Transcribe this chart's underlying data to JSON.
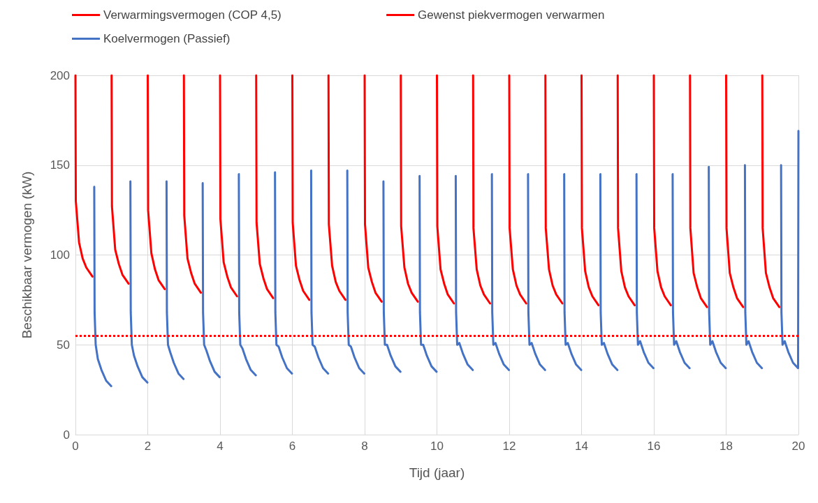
{
  "chart_data": {
    "type": "line",
    "xlabel": "Tijd (jaar)",
    "ylabel": "Beschikbaar vermogen (kW)",
    "xlim": [
      0,
      20
    ],
    "xticks": [
      0,
      2,
      4,
      6,
      8,
      10,
      12,
      14,
      16,
      18,
      20
    ],
    "ylim": [
      0,
      200
    ],
    "yticks": [
      0,
      50,
      100,
      150,
      200
    ],
    "grid": true,
    "legend": "top",
    "marker": "none",
    "series": [
      {
        "name": "Verwarmingsvermogen (COP 4,5)",
        "color": "#ff0000",
        "line_style": "solid",
        "x": [
          0,
          0.01,
          0.1,
          0.2,
          0.3,
          0.47,
          0.5,
          1,
          1.01,
          1.1,
          1.2,
          1.3,
          1.47,
          1.5,
          2,
          2.01,
          2.1,
          2.2,
          2.3,
          2.47,
          2.5,
          3,
          3.01,
          3.1,
          3.2,
          3.3,
          3.47,
          3.5,
          4,
          4.01,
          4.1,
          4.2,
          4.3,
          4.47,
          4.5,
          5,
          5.01,
          5.1,
          5.2,
          5.3,
          5.47,
          5.5,
          6,
          6.01,
          6.1,
          6.2,
          6.3,
          6.47,
          6.5,
          7,
          7.01,
          7.1,
          7.2,
          7.3,
          7.47,
          7.5,
          8,
          8.01,
          8.1,
          8.2,
          8.3,
          8.47,
          8.5,
          9,
          9.01,
          9.1,
          9.2,
          9.3,
          9.47,
          9.5,
          10,
          10.01,
          10.1,
          10.2,
          10.3,
          10.47,
          10.5,
          11,
          11.01,
          11.1,
          11.2,
          11.3,
          11.47,
          11.5,
          12,
          12.01,
          12.1,
          12.2,
          12.3,
          12.47,
          12.5,
          13,
          13.01,
          13.1,
          13.2,
          13.3,
          13.47,
          13.5,
          14,
          14.01,
          14.1,
          14.2,
          14.3,
          14.47,
          14.5,
          15,
          15.01,
          15.1,
          15.2,
          15.3,
          15.47,
          15.5,
          16,
          16.01,
          16.1,
          16.2,
          16.3,
          16.47,
          16.5,
          17,
          17.01,
          17.1,
          17.2,
          17.3,
          17.47,
          17.5,
          18,
          18.01,
          18.1,
          18.2,
          18.3,
          18.47,
          18.5,
          19,
          19.01,
          19.1,
          19.2,
          19.3,
          19.47
        ],
        "values": [
          200,
          130,
          107,
          98,
          93,
          88,
          null,
          200,
          127,
          103,
          95,
          89,
          84,
          null,
          200,
          125,
          101,
          92,
          86,
          81,
          null,
          200,
          122,
          98,
          90,
          84,
          79,
          null,
          200,
          120,
          96,
          88,
          82,
          77,
          null,
          200,
          118,
          95,
          87,
          81,
          76,
          null,
          200,
          118,
          94,
          86,
          80,
          75,
          null,
          200,
          117,
          94,
          85,
          80,
          75,
          null,
          200,
          117,
          93,
          85,
          79,
          74,
          null,
          200,
          116,
          93,
          84,
          79,
          74,
          null,
          200,
          116,
          92,
          84,
          78,
          73,
          null,
          200,
          115,
          92,
          83,
          78,
          73,
          null,
          200,
          115,
          92,
          83,
          78,
          73,
          null,
          200,
          115,
          92,
          83,
          78,
          73,
          null,
          200,
          115,
          91,
          82,
          77,
          72,
          null,
          200,
          115,
          91,
          82,
          77,
          72,
          null,
          200,
          115,
          91,
          82,
          77,
          72,
          null,
          200,
          115,
          90,
          82,
          76,
          71,
          null,
          200,
          115,
          90,
          82,
          76,
          71,
          null,
          200,
          115,
          90,
          82,
          76,
          71
        ]
      },
      {
        "name": "Koelvermogen (Passief)",
        "color": "#4472c4",
        "line_style": "solid",
        "x": [
          0.52,
          0.53,
          0.56,
          0.62,
          0.72,
          0.85,
          0.99,
          1,
          1.52,
          1.53,
          1.56,
          1.62,
          1.72,
          1.85,
          1.99,
          2,
          2.52,
          2.53,
          2.56,
          2.62,
          2.72,
          2.85,
          2.99,
          3,
          3.52,
          3.53,
          3.56,
          3.62,
          3.72,
          3.85,
          3.99,
          4,
          4.52,
          4.53,
          4.56,
          4.62,
          4.72,
          4.85,
          4.99,
          5,
          5.52,
          5.53,
          5.56,
          5.62,
          5.72,
          5.85,
          5.99,
          6,
          6.52,
          6.53,
          6.56,
          6.62,
          6.72,
          6.85,
          6.99,
          7,
          7.52,
          7.53,
          7.56,
          7.62,
          7.72,
          7.85,
          7.99,
          8,
          8.52,
          8.53,
          8.56,
          8.62,
          8.72,
          8.85,
          8.99,
          9,
          9.52,
          9.53,
          9.56,
          9.62,
          9.72,
          9.85,
          9.99,
          10,
          10.52,
          10.53,
          10.56,
          10.62,
          10.72,
          10.85,
          10.99,
          11,
          11.52,
          11.53,
          11.56,
          11.62,
          11.72,
          11.85,
          11.99,
          12,
          12.52,
          12.53,
          12.56,
          12.62,
          12.72,
          12.85,
          12.99,
          13,
          13.52,
          13.53,
          13.56,
          13.62,
          13.72,
          13.85,
          13.99,
          14,
          14.52,
          14.53,
          14.56,
          14.62,
          14.72,
          14.85,
          14.99,
          15,
          15.52,
          15.53,
          15.56,
          15.62,
          15.72,
          15.85,
          15.99,
          16,
          16.52,
          16.53,
          16.56,
          16.62,
          16.72,
          16.85,
          16.99,
          17,
          17.52,
          17.53,
          17.56,
          17.62,
          17.72,
          17.85,
          17.99,
          18,
          18.52,
          18.53,
          18.56,
          18.62,
          18.72,
          18.85,
          18.99,
          19,
          19.52,
          19.53,
          19.56,
          19.62,
          19.72,
          19.85,
          19.99,
          20
        ],
        "values": [
          138,
          68,
          50,
          42,
          36,
          30,
          27,
          null,
          141,
          68,
          50,
          44,
          38,
          32,
          29,
          null,
          141,
          68,
          50,
          46,
          40,
          34,
          31,
          null,
          140,
          68,
          50,
          47,
          41,
          35,
          32,
          null,
          145,
          68,
          50,
          48,
          42,
          36,
          33,
          null,
          146,
          68,
          50,
          49,
          43,
          37,
          34,
          null,
          147,
          68,
          50,
          49,
          43,
          37,
          34,
          null,
          147,
          68,
          50,
          49,
          43,
          37,
          34,
          null,
          141,
          68,
          50,
          50,
          44,
          38,
          35,
          null,
          144,
          68,
          50,
          50,
          44,
          38,
          35,
          null,
          144,
          68,
          50,
          51,
          45,
          39,
          36,
          null,
          145,
          68,
          50,
          51,
          45,
          39,
          36,
          null,
          145,
          68,
          50,
          51,
          45,
          39,
          36,
          null,
          145,
          68,
          50,
          51,
          45,
          39,
          36,
          null,
          145,
          68,
          50,
          51,
          45,
          39,
          36,
          null,
          145,
          68,
          50,
          52,
          46,
          40,
          37,
          null,
          145,
          68,
          50,
          52,
          46,
          40,
          37,
          null,
          149,
          68,
          50,
          52,
          46,
          40,
          37,
          null,
          150,
          68,
          50,
          52,
          46,
          40,
          37,
          null,
          150,
          68,
          50,
          52,
          46,
          40,
          37,
          169
        ]
      }
    ],
    "ref_lines": [
      {
        "axis": "y",
        "value": 55,
        "label": "Gewenst piekvermogen verwarmen",
        "color": "#ff0000",
        "line_style": "dotted"
      }
    ]
  }
}
